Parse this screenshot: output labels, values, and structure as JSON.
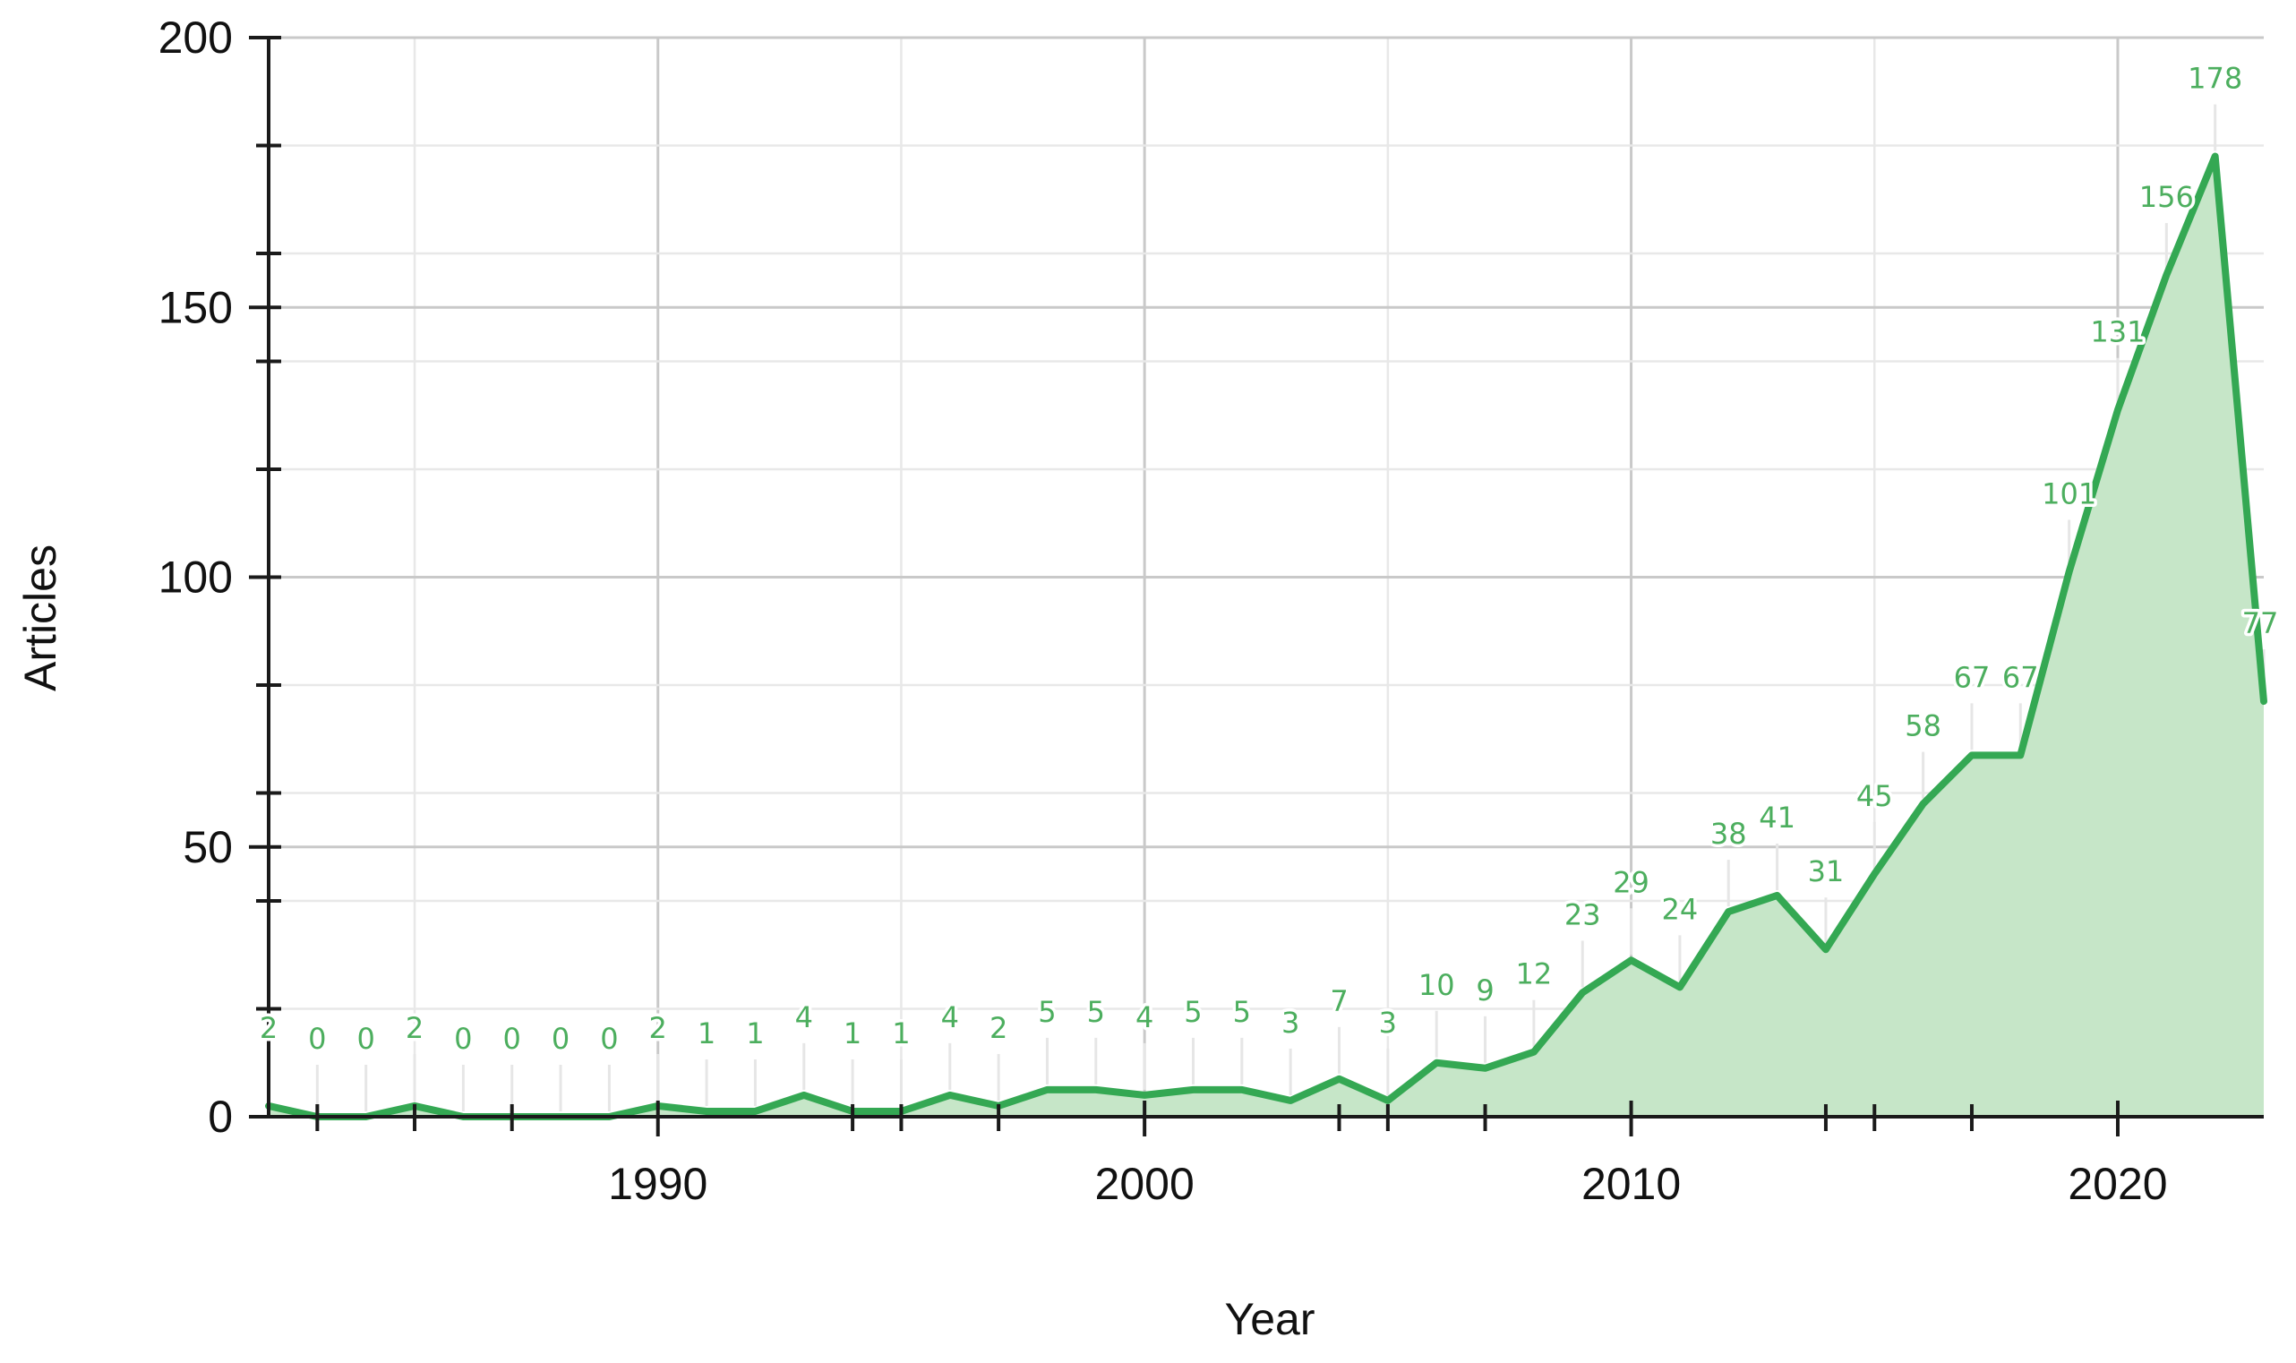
{
  "colors": {
    "line": "#34a853",
    "area": "#c6e6c8",
    "label": "#4cae5e"
  },
  "chart_data": {
    "type": "area",
    "title": "",
    "xlabel": "Year",
    "ylabel": "Articles",
    "xlim": [
      1982,
      2023
    ],
    "ylim": [
      0,
      200
    ],
    "x_ticks": [
      1990,
      2000,
      2010,
      2020
    ],
    "y_ticks": [
      0,
      50,
      100,
      150,
      200
    ],
    "grid": true,
    "legend": "none",
    "series": [
      {
        "x": [
          1982,
          1983,
          1984,
          1985,
          1986,
          1987,
          1988,
          1989,
          1990,
          1991,
          1992,
          1993,
          1994,
          1995,
          1996,
          1997,
          1998,
          1999,
          2000,
          2001,
          2002,
          2003,
          2004,
          2005,
          2006,
          2007,
          2008,
          2009,
          2010,
          2011,
          2012,
          2013,
          2014,
          2015,
          2016,
          2017,
          2018,
          2019,
          2020,
          2021,
          2022,
          2023
        ],
        "values": [
          2,
          0,
          0,
          2,
          0,
          0,
          0,
          0,
          2,
          1,
          1,
          4,
          1,
          1,
          4,
          2,
          5,
          5,
          4,
          5,
          5,
          3,
          7,
          3,
          10,
          9,
          12,
          23,
          29,
          24,
          38,
          41,
          31,
          45,
          58,
          67,
          67,
          101,
          131,
          156,
          178,
          77
        ]
      }
    ]
  }
}
